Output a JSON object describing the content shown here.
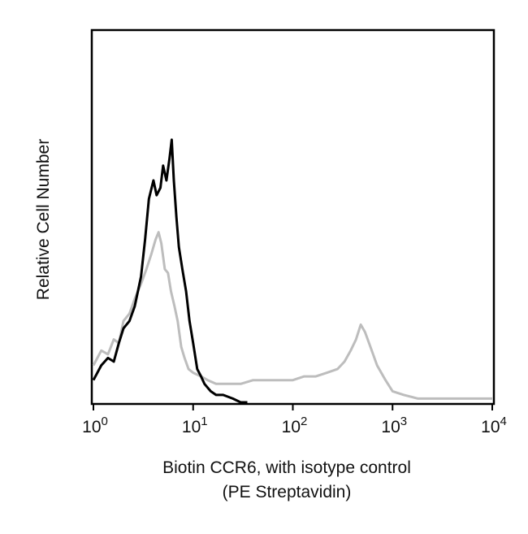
{
  "chart_data": {
    "type": "line",
    "title": "",
    "xlabel_line1": "Biotin CCR6, with isotype control",
    "xlabel_line2": "(PE Streptavidin)",
    "ylabel": "Relative Cell Number",
    "x_scale": "log",
    "xlim": [
      1,
      10000
    ],
    "ylim": [
      0,
      100
    ],
    "grid": false,
    "legend": "none",
    "x_ticks": [
      {
        "value": 1,
        "base": "10",
        "exp": "0"
      },
      {
        "value": 10,
        "base": "10",
        "exp": "1"
      },
      {
        "value": 100,
        "base": "10",
        "exp": "2"
      },
      {
        "value": 1000,
        "base": "10",
        "exp": "3"
      },
      {
        "value": 10000,
        "base": "10",
        "exp": "4"
      }
    ],
    "series": [
      {
        "color": "#bdbdbd",
        "x": [
          1.0,
          1.2,
          1.4,
          1.6,
          1.8,
          2.0,
          2.3,
          2.6,
          3.0,
          3.4,
          3.8,
          4.2,
          4.5,
          4.8,
          5.2,
          5.6,
          6.0,
          6.5,
          7.0,
          7.6,
          8.2,
          9.0,
          10,
          12,
          14,
          17,
          20,
          25,
          30,
          40,
          50,
          70,
          100,
          130,
          170,
          220,
          280,
          330,
          380,
          430,
          480,
          530,
          600,
          700,
          850,
          1000,
          1300,
          1800,
          2500,
          4000,
          6000,
          10000
        ],
        "y": [
          10,
          14,
          13,
          17,
          16,
          22,
          24,
          28,
          32,
          36,
          40,
          44,
          46,
          43,
          36,
          35,
          30,
          26,
          22,
          15,
          12,
          9,
          8,
          7,
          6,
          5,
          5,
          5,
          5,
          6,
          6,
          6,
          6,
          7,
          7,
          8,
          9,
          11,
          14,
          17,
          21,
          19,
          15,
          10,
          6,
          3,
          2,
          1,
          1,
          1,
          1,
          1
        ]
      },
      {
        "color": "#000000",
        "x": [
          1.0,
          1.2,
          1.4,
          1.6,
          1.8,
          2.0,
          2.3,
          2.6,
          3.0,
          3.3,
          3.6,
          4.0,
          4.3,
          4.7,
          5.0,
          5.4,
          5.8,
          6.1,
          6.4,
          6.8,
          7.2,
          7.8,
          8.5,
          9.2,
          10,
          11,
          12,
          13,
          15,
          17,
          20,
          25,
          30,
          35
        ],
        "y": [
          6,
          10,
          12,
          11,
          16,
          20,
          22,
          26,
          34,
          44,
          55,
          60,
          56,
          58,
          64,
          60,
          66,
          71,
          60,
          50,
          42,
          36,
          30,
          22,
          16,
          9,
          7,
          5,
          3,
          2,
          2,
          1,
          0,
          0
        ]
      }
    ]
  }
}
